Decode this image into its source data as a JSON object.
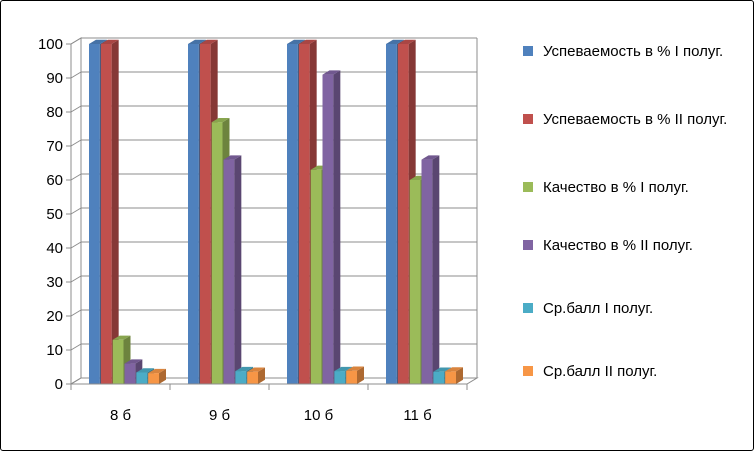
{
  "chart_data": {
    "type": "bar",
    "categories": [
      "8 б",
      "9 б",
      "10 б",
      "11 б"
    ],
    "series": [
      {
        "name": "Успеваемость в % I полуг.",
        "values": [
          100,
          100,
          100,
          100
        ],
        "color": "#4F81BD"
      },
      {
        "name": "Успеваемость в % II полуг.",
        "values": [
          100,
          100,
          100,
          100
        ],
        "color": "#C0504D"
      },
      {
        "name": "Качество в % I полуг.",
        "values": [
          13,
          77,
          63,
          60
        ],
        "color": "#9BBB59"
      },
      {
        "name": "Качество в % II полуг.",
        "values": [
          6,
          66,
          91,
          66
        ],
        "color": "#8064A2"
      },
      {
        "name": "Ср.балл I полуг.",
        "values": [
          3.4,
          3.8,
          3.8,
          3.6
        ],
        "color": "#4BACC6"
      },
      {
        "name": "Ср.балл II полуг.",
        "values": [
          3.2,
          3.6,
          3.9,
          3.7
        ],
        "color": "#F79646"
      }
    ],
    "yticks": [
      "0",
      "10",
      "20",
      "30",
      "40",
      "50",
      "60",
      "70",
      "80",
      "90",
      "100"
    ],
    "ylim": [
      0,
      100
    ],
    "grid": true,
    "legend_position": "right",
    "style": "3d-clustered-column"
  }
}
